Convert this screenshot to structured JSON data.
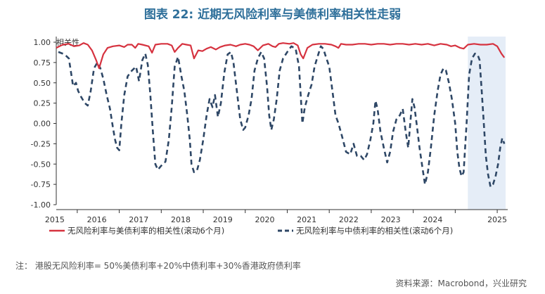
{
  "title": "图表 22: 近期无风险利率与美债利率相关性走弱",
  "footnote": "注：  港股无风险利率= 50%美债利率+20%中债利率+30%香港政府债利率",
  "source": "资料来源：Macrobond，兴业研究",
  "chart_data": {
    "type": "line",
    "ylabel": "相关性",
    "ylim": [
      -1.0,
      1.0
    ],
    "yticks": [
      1.0,
      0.75,
      0.5,
      0.25,
      0.0,
      -0.25,
      -0.5,
      -0.75,
      -1.0
    ],
    "ytick_labels": [
      "1.00",
      "0.75",
      "0.50",
      "0.25",
      "0.00",
      "-0.25",
      "-0.50",
      "-0.75",
      "-1.00"
    ],
    "xlim": [
      2014.5,
      2025.25
    ],
    "xticks": [
      2015,
      2016,
      2017,
      2018,
      2019,
      2020,
      2021,
      2022,
      2023,
      2024,
      2025
    ],
    "xtick_labels": [
      "2015",
      "2016",
      "2017",
      "2018",
      "2019",
      "2020",
      "2021",
      "2022",
      "2023",
      "2024",
      "2025"
    ],
    "shaded_region": [
      2024.3,
      2025.2
    ],
    "legend_position": "bottom",
    "colors": {
      "series1": "#d6323f",
      "series2": "#2e4766",
      "shade": "#e5edf7",
      "title": "#2e6f9a"
    },
    "series": [
      {
        "name": "无风险利率与美债利率的相关性(滚动6个月)",
        "style": "solid",
        "points": [
          [
            2014.5,
            0.93
          ],
          [
            2014.65,
            0.97
          ],
          [
            2014.8,
            0.98
          ],
          [
            2014.92,
            0.95
          ],
          [
            2015.05,
            0.96
          ],
          [
            2015.15,
            0.99
          ],
          [
            2015.25,
            0.97
          ],
          [
            2015.35,
            0.9
          ],
          [
            2015.45,
            0.78
          ],
          [
            2015.52,
            0.68
          ],
          [
            2015.62,
            0.85
          ],
          [
            2015.72,
            0.93
          ],
          [
            2015.85,
            0.95
          ],
          [
            2016.0,
            0.96
          ],
          [
            2016.12,
            0.94
          ],
          [
            2016.2,
            0.97
          ],
          [
            2016.3,
            0.97
          ],
          [
            2016.38,
            0.93
          ],
          [
            2016.45,
            0.98
          ],
          [
            2016.55,
            0.97
          ],
          [
            2016.7,
            0.95
          ],
          [
            2016.78,
            0.87
          ],
          [
            2016.86,
            0.97
          ],
          [
            2017.0,
            0.98
          ],
          [
            2017.15,
            0.98
          ],
          [
            2017.25,
            0.96
          ],
          [
            2017.32,
            0.88
          ],
          [
            2017.4,
            0.93
          ],
          [
            2017.5,
            0.98
          ],
          [
            2017.6,
            0.97
          ],
          [
            2017.7,
            0.96
          ],
          [
            2017.78,
            0.8
          ],
          [
            2017.88,
            0.9
          ],
          [
            2017.98,
            0.89
          ],
          [
            2018.08,
            0.92
          ],
          [
            2018.18,
            0.94
          ],
          [
            2018.3,
            0.91
          ],
          [
            2018.4,
            0.94
          ],
          [
            2018.52,
            0.96
          ],
          [
            2018.65,
            0.97
          ],
          [
            2018.78,
            0.95
          ],
          [
            2018.88,
            0.97
          ],
          [
            2019.0,
            0.98
          ],
          [
            2019.1,
            0.97
          ],
          [
            2019.2,
            0.95
          ],
          [
            2019.3,
            0.9
          ],
          [
            2019.42,
            0.96
          ],
          [
            2019.55,
            0.98
          ],
          [
            2019.65,
            0.95
          ],
          [
            2019.72,
            0.94
          ],
          [
            2019.8,
            0.98
          ],
          [
            2019.9,
            0.99
          ],
          [
            2020.05,
            0.98
          ],
          [
            2020.15,
            0.99
          ],
          [
            2020.25,
            0.96
          ],
          [
            2020.32,
            0.85
          ],
          [
            2020.38,
            0.8
          ],
          [
            2020.48,
            0.93
          ],
          [
            2020.6,
            0.97
          ],
          [
            2020.75,
            0.98
          ],
          [
            2020.9,
            0.98
          ],
          [
            2021.05,
            0.97
          ],
          [
            2021.15,
            0.95
          ],
          [
            2021.22,
            0.93
          ],
          [
            2021.28,
            0.98
          ],
          [
            2021.4,
            0.97
          ],
          [
            2021.55,
            0.97
          ],
          [
            2021.7,
            0.98
          ],
          [
            2021.85,
            0.98
          ],
          [
            2022.0,
            0.97
          ],
          [
            2022.15,
            0.98
          ],
          [
            2022.3,
            0.98
          ],
          [
            2022.45,
            0.97
          ],
          [
            2022.6,
            0.98
          ],
          [
            2022.75,
            0.98
          ],
          [
            2022.9,
            0.97
          ],
          [
            2023.05,
            0.98
          ],
          [
            2023.2,
            0.97
          ],
          [
            2023.35,
            0.98
          ],
          [
            2023.5,
            0.96
          ],
          [
            2023.65,
            0.98
          ],
          [
            2023.8,
            0.97
          ],
          [
            2023.9,
            0.95
          ],
          [
            2024.0,
            0.96
          ],
          [
            2024.12,
            0.93
          ],
          [
            2024.2,
            0.92
          ],
          [
            2024.3,
            0.97
          ],
          [
            2024.45,
            0.98
          ],
          [
            2024.6,
            0.97
          ],
          [
            2024.75,
            0.97
          ],
          [
            2024.9,
            0.98
          ],
          [
            2025.0,
            0.95
          ],
          [
            2025.1,
            0.86
          ],
          [
            2025.17,
            0.81
          ]
        ]
      },
      {
        "name": "无风险利率与中债利率的相关性(滚动6个月)",
        "style": "dashed",
        "points": [
          [
            2014.55,
            0.88
          ],
          [
            2014.7,
            0.85
          ],
          [
            2014.8,
            0.8
          ],
          [
            2014.86,
            0.6
          ],
          [
            2014.9,
            0.46
          ],
          [
            2014.97,
            0.5
          ],
          [
            2015.02,
            0.4
          ],
          [
            2015.1,
            0.32
          ],
          [
            2015.18,
            0.25
          ],
          [
            2015.25,
            0.22
          ],
          [
            2015.32,
            0.4
          ],
          [
            2015.4,
            0.68
          ],
          [
            2015.48,
            0.75
          ],
          [
            2015.55,
            0.68
          ],
          [
            2015.62,
            0.55
          ],
          [
            2015.7,
            0.35
          ],
          [
            2015.78,
            0.18
          ],
          [
            2015.85,
            -0.05
          ],
          [
            2015.9,
            -0.2
          ],
          [
            2015.95,
            -0.3
          ],
          [
            2016.0,
            -0.33
          ],
          [
            2016.05,
            0.0
          ],
          [
            2016.12,
            0.35
          ],
          [
            2016.2,
            0.58
          ],
          [
            2016.3,
            0.65
          ],
          [
            2016.4,
            0.7
          ],
          [
            2016.47,
            0.52
          ],
          [
            2016.55,
            0.78
          ],
          [
            2016.62,
            0.86
          ],
          [
            2016.68,
            0.72
          ],
          [
            2016.74,
            0.35
          ],
          [
            2016.8,
            -0.1
          ],
          [
            2016.86,
            -0.5
          ],
          [
            2016.92,
            -0.57
          ],
          [
            2017.0,
            -0.52
          ],
          [
            2017.1,
            -0.47
          ],
          [
            2017.18,
            -0.2
          ],
          [
            2017.25,
            0.2
          ],
          [
            2017.32,
            0.7
          ],
          [
            2017.4,
            0.82
          ],
          [
            2017.48,
            0.58
          ],
          [
            2017.55,
            0.4
          ],
          [
            2017.62,
            0.1
          ],
          [
            2017.68,
            -0.2
          ],
          [
            2017.72,
            -0.5
          ],
          [
            2017.78,
            -0.6
          ],
          [
            2017.85,
            -0.58
          ],
          [
            2017.92,
            -0.45
          ],
          [
            2018.0,
            -0.2
          ],
          [
            2018.08,
            0.1
          ],
          [
            2018.15,
            0.3
          ],
          [
            2018.22,
            0.2
          ],
          [
            2018.28,
            0.35
          ],
          [
            2018.35,
            0.08
          ],
          [
            2018.42,
            0.25
          ],
          [
            2018.5,
            0.62
          ],
          [
            2018.58,
            0.85
          ],
          [
            2018.66,
            0.88
          ],
          [
            2018.72,
            0.75
          ],
          [
            2018.8,
            0.4
          ],
          [
            2018.88,
            0.05
          ],
          [
            2018.95,
            -0.08
          ],
          [
            2019.0,
            -0.05
          ],
          [
            2019.08,
            0.1
          ],
          [
            2019.15,
            0.3
          ],
          [
            2019.22,
            0.65
          ],
          [
            2019.3,
            0.8
          ],
          [
            2019.38,
            0.88
          ],
          [
            2019.45,
            0.8
          ],
          [
            2019.52,
            0.45
          ],
          [
            2019.57,
            0.1
          ],
          [
            2019.62,
            -0.08
          ],
          [
            2019.68,
            0.05
          ],
          [
            2019.75,
            0.3
          ],
          [
            2019.82,
            0.65
          ],
          [
            2019.9,
            0.8
          ],
          [
            2020.0,
            0.88
          ],
          [
            2020.1,
            0.95
          ],
          [
            2020.2,
            0.92
          ],
          [
            2020.28,
            0.7
          ],
          [
            2020.32,
            0.35
          ],
          [
            2020.36,
            0.0
          ],
          [
            2020.42,
            0.2
          ],
          [
            2020.5,
            0.35
          ],
          [
            2020.58,
            0.48
          ],
          [
            2020.65,
            0.7
          ],
          [
            2020.72,
            0.82
          ],
          [
            2020.8,
            0.95
          ],
          [
            2020.86,
            0.92
          ],
          [
            2020.92,
            0.82
          ],
          [
            2021.0,
            0.7
          ],
          [
            2021.05,
            0.5
          ],
          [
            2021.1,
            0.3
          ],
          [
            2021.15,
            0.1
          ],
          [
            2021.22,
            0.0
          ],
          [
            2021.3,
            -0.15
          ],
          [
            2021.4,
            -0.35
          ],
          [
            2021.5,
            -0.38
          ],
          [
            2021.58,
            -0.25
          ],
          [
            2021.66,
            -0.4
          ],
          [
            2021.75,
            -0.4
          ],
          [
            2021.83,
            -0.45
          ],
          [
            2021.9,
            -0.38
          ],
          [
            2021.98,
            -0.2
          ],
          [
            2022.05,
            0.0
          ],
          [
            2022.1,
            0.28
          ],
          [
            2022.15,
            0.18
          ],
          [
            2022.22,
            -0.1
          ],
          [
            2022.3,
            -0.3
          ],
          [
            2022.38,
            -0.48
          ],
          [
            2022.45,
            -0.35
          ],
          [
            2022.52,
            -0.1
          ],
          [
            2022.6,
            0.05
          ],
          [
            2022.68,
            0.1
          ],
          [
            2022.75,
            0.18
          ],
          [
            2022.82,
            -0.1
          ],
          [
            2022.88,
            -0.3
          ],
          [
            2022.93,
            0.0
          ],
          [
            2022.98,
            0.3
          ],
          [
            2023.03,
            0.2
          ],
          [
            2023.08,
            0.0
          ],
          [
            2023.15,
            -0.3
          ],
          [
            2023.22,
            -0.55
          ],
          [
            2023.28,
            -0.75
          ],
          [
            2023.35,
            -0.6
          ],
          [
            2023.42,
            -0.3
          ],
          [
            2023.5,
            0.1
          ],
          [
            2023.58,
            0.4
          ],
          [
            2023.65,
            0.6
          ],
          [
            2023.72,
            0.68
          ],
          [
            2023.78,
            0.65
          ],
          [
            2023.85,
            0.5
          ],
          [
            2023.92,
            0.3
          ],
          [
            2024.0,
            0.0
          ],
          [
            2024.05,
            -0.35
          ],
          [
            2024.1,
            -0.55
          ],
          [
            2024.15,
            -0.65
          ],
          [
            2024.2,
            -0.6
          ],
          [
            2024.27,
            0.0
          ],
          [
            2024.33,
            0.6
          ],
          [
            2024.4,
            0.8
          ],
          [
            2024.47,
            0.86
          ],
          [
            2024.53,
            0.85
          ],
          [
            2024.58,
            0.78
          ],
          [
            2024.63,
            0.4
          ],
          [
            2024.68,
            0.0
          ],
          [
            2024.73,
            -0.4
          ],
          [
            2024.78,
            -0.62
          ],
          [
            2024.84,
            -0.78
          ],
          [
            2024.9,
            -0.75
          ],
          [
            2024.96,
            -0.65
          ],
          [
            2025.02,
            -0.5
          ],
          [
            2025.07,
            -0.3
          ],
          [
            2025.12,
            -0.18
          ],
          [
            2025.17,
            -0.25
          ]
        ]
      }
    ]
  }
}
